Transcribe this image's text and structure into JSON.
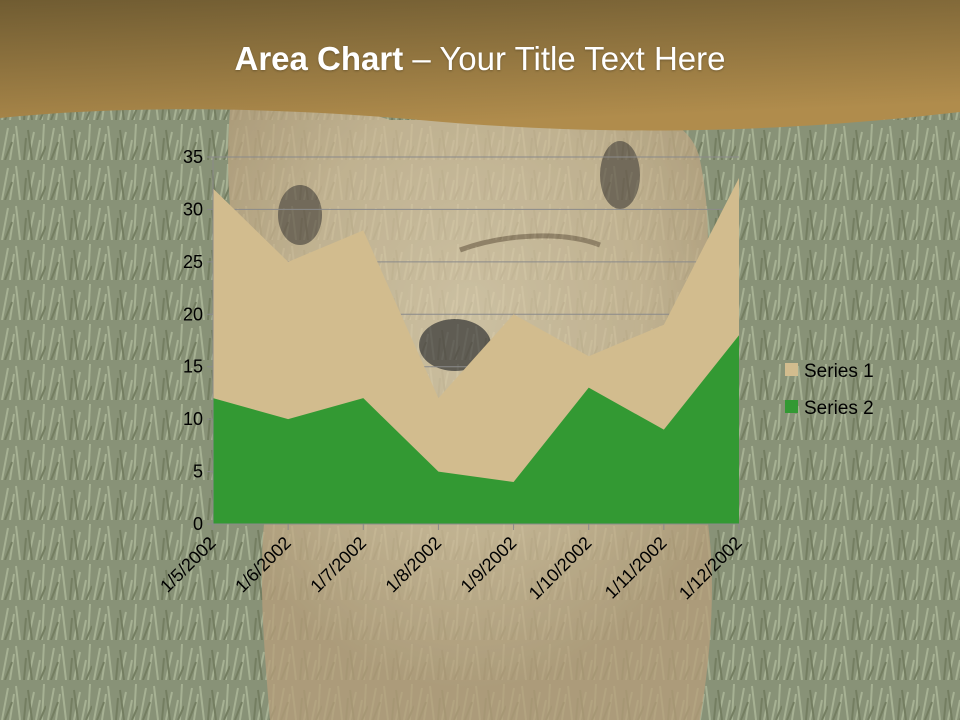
{
  "slide": {
    "title_bold": "Area Chart",
    "title_rest": " – Your Title Text Here"
  },
  "colors": {
    "banner_top": "#705c32",
    "banner_bottom": "#b08c4c",
    "grass_dark": "#5e6a4a",
    "grass_light": "#8c9878",
    "dog_fur": "#c8ad82",
    "series1": "#d2bc8e",
    "series2": "#339933",
    "gridline": "#8a8a8a",
    "axis": "#8a8a8a"
  },
  "chart_data": {
    "type": "area",
    "stacked": false,
    "categories": [
      "1/5/2002",
      "1/6/2002",
      "1/7/2002",
      "1/8/2002",
      "1/9/2002",
      "1/10/2002",
      "1/11/2002",
      "1/12/2002"
    ],
    "series": [
      {
        "name": "Series 1",
        "values": [
          32,
          25,
          28,
          12,
          20,
          16,
          19,
          33
        ]
      },
      {
        "name": "Series 2",
        "values": [
          12,
          10,
          12,
          5,
          4,
          13,
          9,
          18
        ]
      }
    ],
    "ylim": [
      0,
      35
    ],
    "yticks": [
      0,
      5,
      10,
      15,
      20,
      25,
      30,
      35
    ],
    "grid": true,
    "legend_position": "right"
  }
}
